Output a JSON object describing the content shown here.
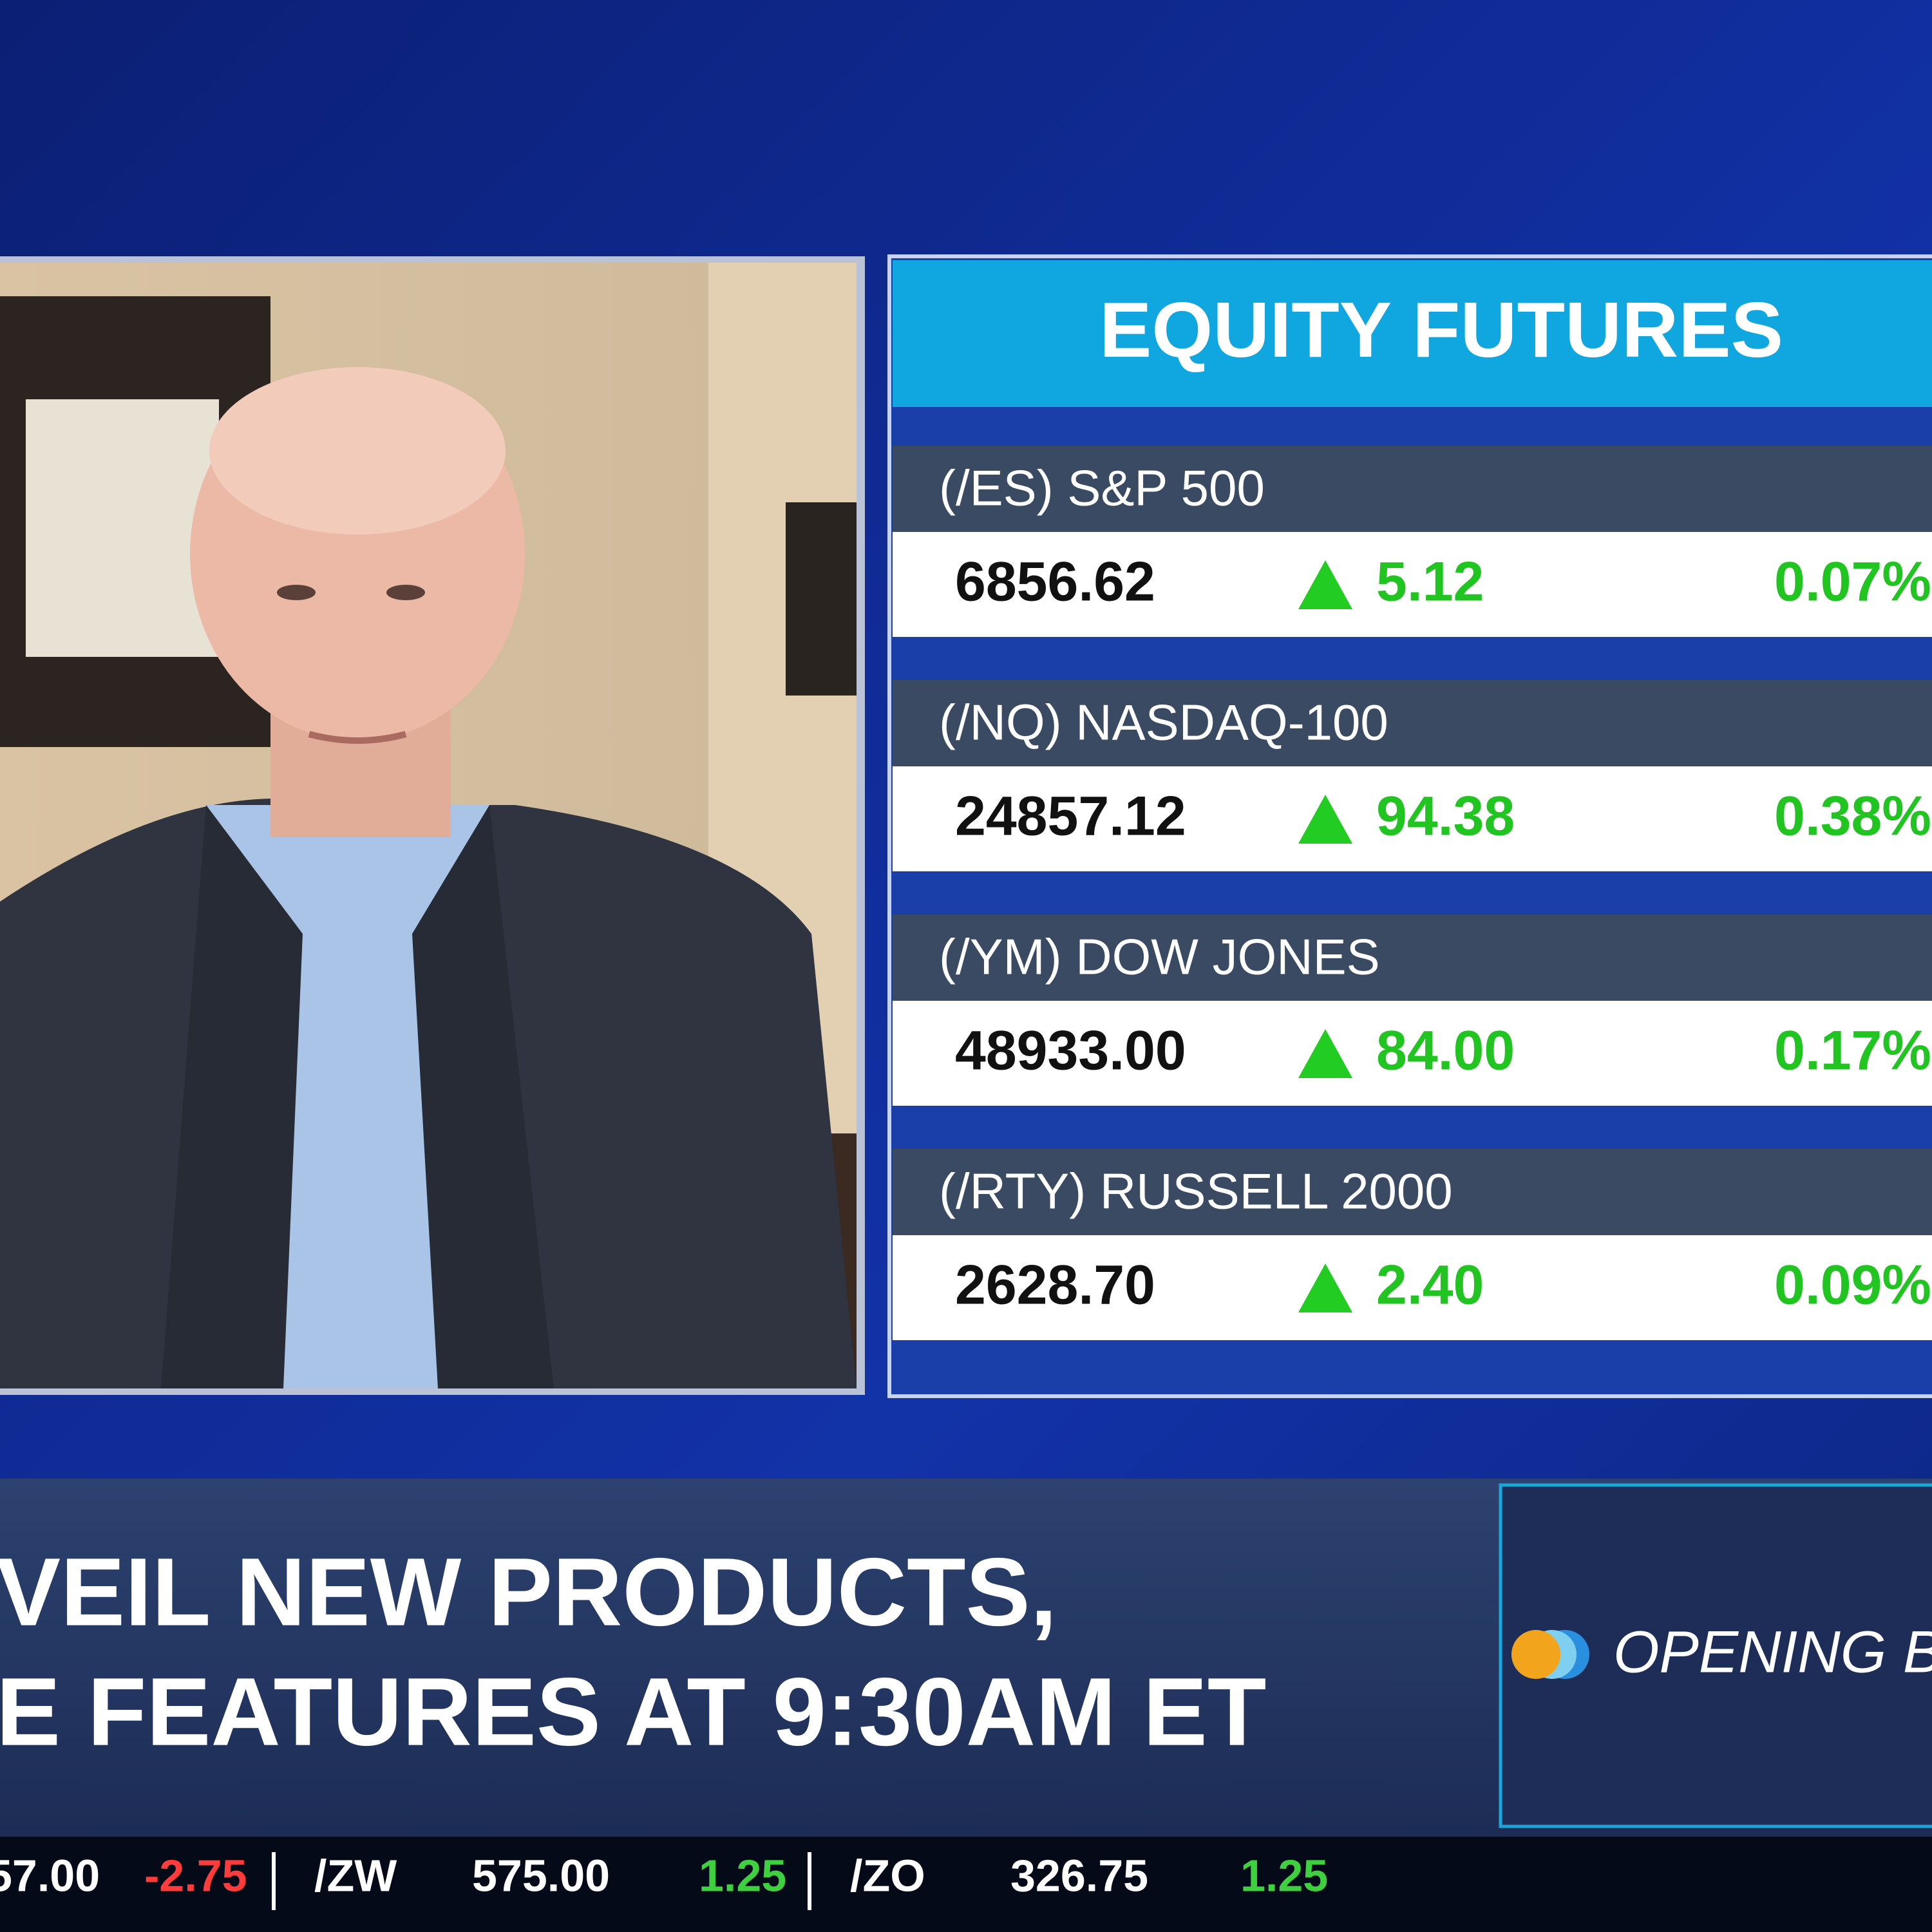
{
  "panel": {
    "title": "EQUITY FUTURES",
    "rows": [
      {
        "name": "(/ES) S&P 500",
        "price": "6856.62",
        "change": "5.12",
        "percent": "0.07%"
      },
      {
        "name": "(/NQ) NASDAQ-100",
        "price": "24857.12",
        "change": "94.38",
        "percent": "0.38%"
      },
      {
        "name": "(/YM) DOW JONES",
        "price": "48933.00",
        "change": "84.00",
        "percent": "0.17%"
      },
      {
        "name": "(/RTY) RUSSELL 2000",
        "price": "2628.70",
        "change": "2.40",
        "percent": "0.09%"
      }
    ]
  },
  "headline": {
    "lines": [
      "VEIL NEW PRODUCTS,",
      "E FEATURES AT 9:30AM ET"
    ]
  },
  "logo": {
    "text": "OPENING B"
  },
  "ticker": {
    "items": [
      {
        "text": "57.00",
        "kind": "price"
      },
      {
        "text": "-2.75",
        "kind": "down"
      },
      {
        "text": "/ZW",
        "kind": "symbol"
      },
      {
        "text": "575.00",
        "kind": "price"
      },
      {
        "text": "1.25",
        "kind": "up"
      },
      {
        "text": "/ZO",
        "kind": "symbol"
      },
      {
        "text": "326.75",
        "kind": "price"
      },
      {
        "text": "1.25",
        "kind": "up"
      }
    ]
  }
}
